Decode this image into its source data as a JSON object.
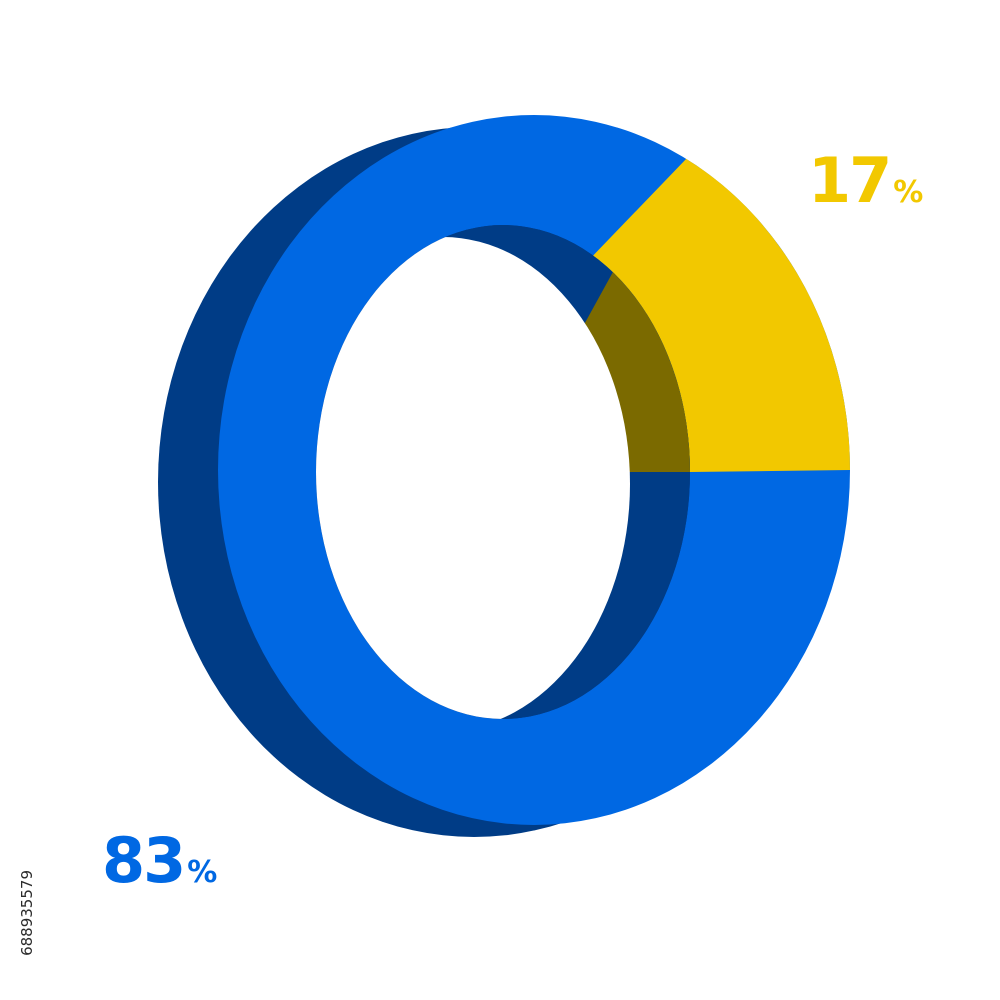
{
  "chart_data": {
    "type": "pie",
    "style": "3d-donut",
    "series": [
      {
        "value": 17,
        "color": "#f2c800",
        "shade": "#7b6a00"
      },
      {
        "value": 83,
        "color": "#0068e3",
        "shade": "#003c86"
      }
    ],
    "labels": [
      {
        "number": "17",
        "unit": "%",
        "color": "#f2c800"
      },
      {
        "number": "83",
        "unit": "%",
        "color": "#0068e3"
      }
    ]
  },
  "stock_id": "688935579"
}
